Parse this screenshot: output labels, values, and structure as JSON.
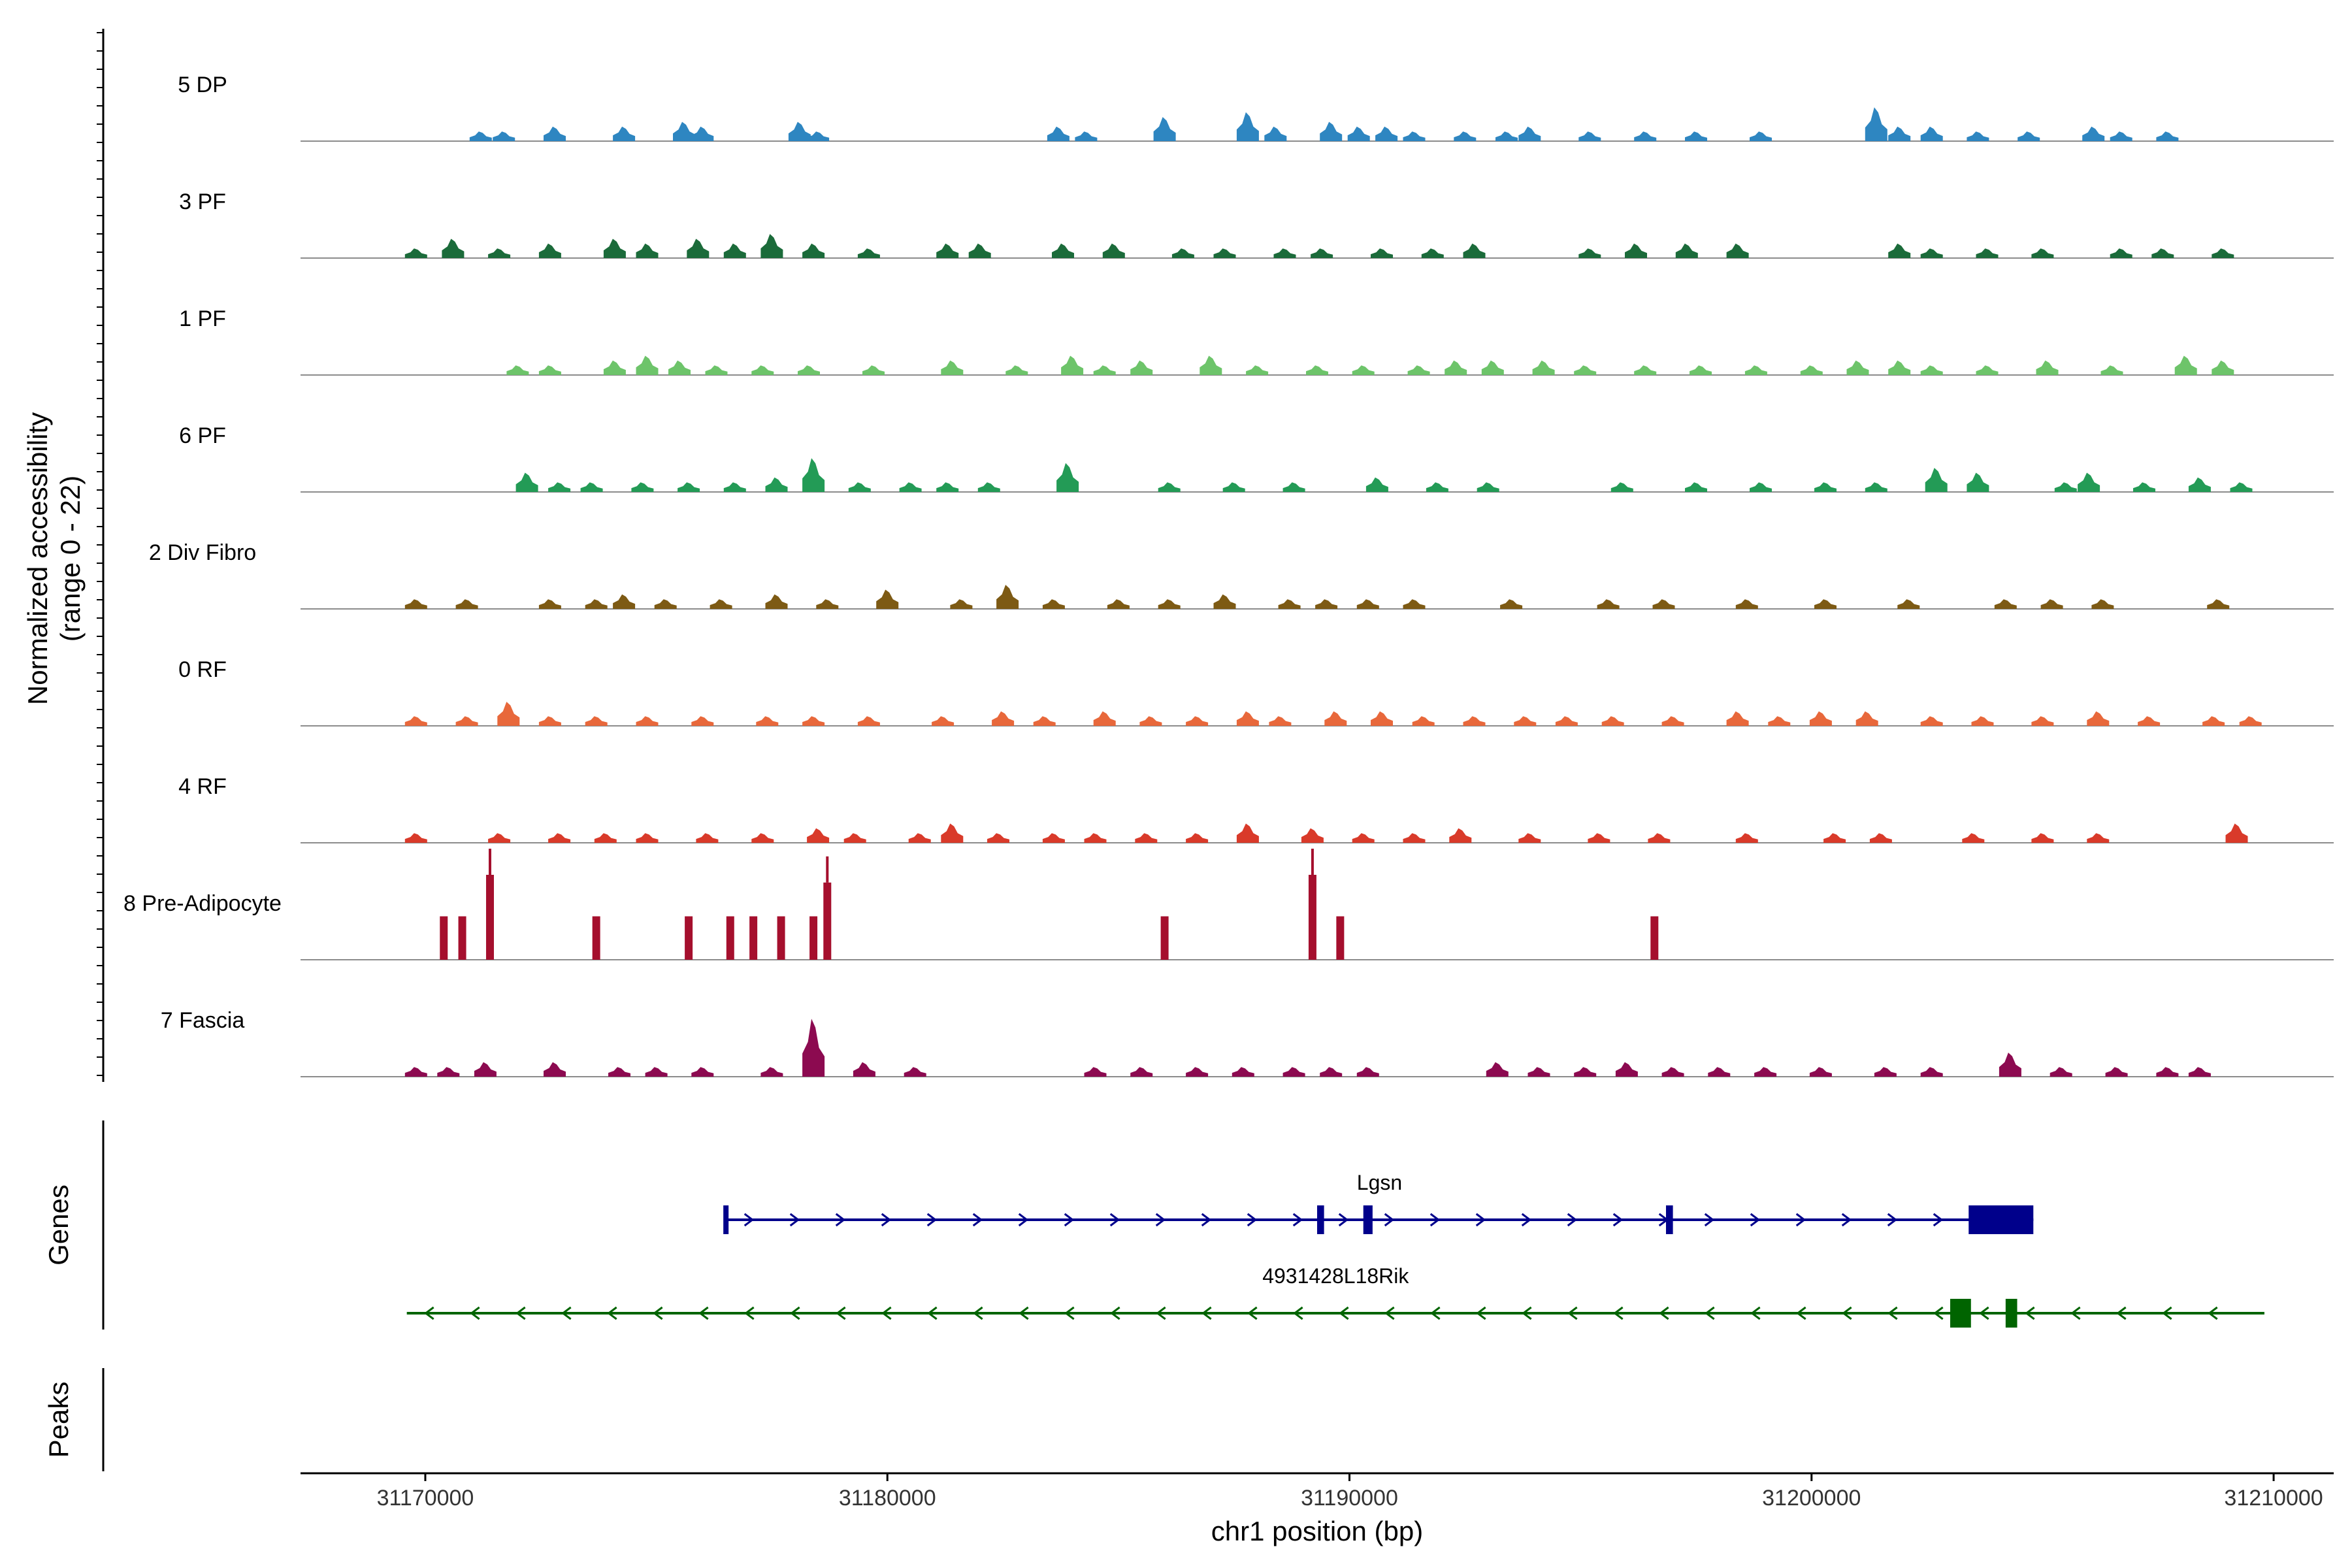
{
  "chart_data": {
    "type": "coverage-tracks",
    "ylabel_line1": "Normalized accessibility",
    "ylabel_line2": "(range 0 - 22)",
    "ylim": [
      0,
      22
    ],
    "xlabel": "chr1 position (bp)",
    "xlim": [
      31167300,
      31211300
    ],
    "x_ticks": [
      31170000,
      31180000,
      31190000,
      31200000,
      31210000
    ],
    "x_tick_labels": [
      "31170000",
      "31180000",
      "31190000",
      "31200000",
      "31210000"
    ],
    "tracks": [
      {
        "name": "5 DP",
        "color": "#2E86C1",
        "peaks": [
          [
            31171200,
            2
          ],
          [
            31171700,
            2
          ],
          [
            31172800,
            3
          ],
          [
            31174300,
            3
          ],
          [
            31175600,
            4
          ],
          [
            31176000,
            3
          ],
          [
            31178100,
            4
          ],
          [
            31178500,
            2
          ],
          [
            31183700,
            3
          ],
          [
            31184300,
            2
          ],
          [
            31186000,
            5
          ],
          [
            31187800,
            6
          ],
          [
            31188400,
            3
          ],
          [
            31189600,
            4
          ],
          [
            31190200,
            3
          ],
          [
            31190800,
            3
          ],
          [
            31191400,
            2
          ],
          [
            31192500,
            2
          ],
          [
            31193400,
            2
          ],
          [
            31193900,
            3
          ],
          [
            31195200,
            2
          ],
          [
            31196400,
            2
          ],
          [
            31197500,
            2
          ],
          [
            31198900,
            2
          ],
          [
            31201400,
            7
          ],
          [
            31201900,
            3
          ],
          [
            31202600,
            3
          ],
          [
            31203600,
            2
          ],
          [
            31204700,
            2
          ],
          [
            31206100,
            3
          ],
          [
            31206700,
            2
          ],
          [
            31207700,
            2
          ]
        ]
      },
      {
        "name": "3 PF",
        "color": "#1B6B3A",
        "peaks": [
          [
            31169800,
            2
          ],
          [
            31170600,
            4
          ],
          [
            31171600,
            2
          ],
          [
            31172700,
            3
          ],
          [
            31174100,
            4
          ],
          [
            31174800,
            3
          ],
          [
            31175900,
            4
          ],
          [
            31176700,
            3
          ],
          [
            31177500,
            5
          ],
          [
            31178400,
            3
          ],
          [
            31179600,
            2
          ],
          [
            31181300,
            3
          ],
          [
            31182000,
            3
          ],
          [
            31183800,
            3
          ],
          [
            31184900,
            3
          ],
          [
            31186400,
            2
          ],
          [
            31187300,
            2
          ],
          [
            31188600,
            2
          ],
          [
            31189400,
            2
          ],
          [
            31190700,
            2
          ],
          [
            31191800,
            2
          ],
          [
            31192700,
            3
          ],
          [
            31195200,
            2
          ],
          [
            31196200,
            3
          ],
          [
            31197300,
            3
          ],
          [
            31198400,
            3
          ],
          [
            31201900,
            3
          ],
          [
            31202600,
            2
          ],
          [
            31203800,
            2
          ],
          [
            31205000,
            2
          ],
          [
            31206700,
            2
          ],
          [
            31207600,
            2
          ],
          [
            31208900,
            2
          ]
        ]
      },
      {
        "name": "1 PF",
        "color": "#6DC46A",
        "peaks": [
          [
            31172000,
            2
          ],
          [
            31172700,
            2
          ],
          [
            31174100,
            3
          ],
          [
            31174800,
            4
          ],
          [
            31175500,
            3
          ],
          [
            31176300,
            2
          ],
          [
            31177300,
            2
          ],
          [
            31178300,
            2
          ],
          [
            31179700,
            2
          ],
          [
            31181400,
            3
          ],
          [
            31182800,
            2
          ],
          [
            31184000,
            4
          ],
          [
            31184700,
            2
          ],
          [
            31185500,
            3
          ],
          [
            31187000,
            4
          ],
          [
            31188000,
            2
          ],
          [
            31189300,
            2
          ],
          [
            31190300,
            2
          ],
          [
            31191500,
            2
          ],
          [
            31192300,
            3
          ],
          [
            31193100,
            3
          ],
          [
            31194200,
            3
          ],
          [
            31195100,
            2
          ],
          [
            31196400,
            2
          ],
          [
            31197600,
            2
          ],
          [
            31198800,
            2
          ],
          [
            31200000,
            2
          ],
          [
            31201000,
            3
          ],
          [
            31201900,
            3
          ],
          [
            31202600,
            2
          ],
          [
            31203800,
            2
          ],
          [
            31205100,
            3
          ],
          [
            31206500,
            2
          ],
          [
            31208100,
            4
          ],
          [
            31208900,
            3
          ]
        ]
      },
      {
        "name": "6 PF",
        "color": "#239B56",
        "peaks": [
          [
            31172200,
            4
          ],
          [
            31172900,
            2
          ],
          [
            31173600,
            2
          ],
          [
            31174700,
            2
          ],
          [
            31175700,
            2
          ],
          [
            31176700,
            2
          ],
          [
            31177600,
            3
          ],
          [
            31178400,
            7
          ],
          [
            31179400,
            2
          ],
          [
            31180500,
            2
          ],
          [
            31181300,
            2
          ],
          [
            31182200,
            2
          ],
          [
            31183900,
            6
          ],
          [
            31186100,
            2
          ],
          [
            31187500,
            2
          ],
          [
            31188800,
            2
          ],
          [
            31190600,
            3
          ],
          [
            31191900,
            2
          ],
          [
            31193000,
            2
          ],
          [
            31195900,
            2
          ],
          [
            31197500,
            2
          ],
          [
            31198900,
            2
          ],
          [
            31200300,
            2
          ],
          [
            31201400,
            2
          ],
          [
            31202700,
            5
          ],
          [
            31203600,
            4
          ],
          [
            31205500,
            2
          ],
          [
            31206000,
            4
          ],
          [
            31207200,
            2
          ],
          [
            31208400,
            3
          ],
          [
            31209300,
            2
          ]
        ]
      },
      {
        "name": "2 Div Fibro",
        "color": "#7D5A14",
        "peaks": [
          [
            31169800,
            2
          ],
          [
            31170900,
            2
          ],
          [
            31172700,
            2
          ],
          [
            31173700,
            2
          ],
          [
            31174300,
            3
          ],
          [
            31175200,
            2
          ],
          [
            31176400,
            2
          ],
          [
            31177600,
            3
          ],
          [
            31178700,
            2
          ],
          [
            31180000,
            4
          ],
          [
            31181600,
            2
          ],
          [
            31182600,
            5
          ],
          [
            31183600,
            2
          ],
          [
            31185000,
            2
          ],
          [
            31186100,
            2
          ],
          [
            31187300,
            3
          ],
          [
            31188700,
            2
          ],
          [
            31189500,
            2
          ],
          [
            31190400,
            2
          ],
          [
            31191400,
            2
          ],
          [
            31193500,
            2
          ],
          [
            31195600,
            2
          ],
          [
            31196800,
            2
          ],
          [
            31198600,
            2
          ],
          [
            31200300,
            2
          ],
          [
            31202100,
            2
          ],
          [
            31204200,
            2
          ],
          [
            31205200,
            2
          ],
          [
            31206300,
            2
          ],
          [
            31208800,
            2
          ]
        ]
      },
      {
        "name": "0 RF",
        "color": "#E8683B",
        "peaks": [
          [
            31169800,
            2
          ],
          [
            31170900,
            2
          ],
          [
            31171800,
            5
          ],
          [
            31172700,
            2
          ],
          [
            31173700,
            2
          ],
          [
            31174800,
            2
          ],
          [
            31176000,
            2
          ],
          [
            31177400,
            2
          ],
          [
            31178400,
            2
          ],
          [
            31179600,
            2
          ],
          [
            31181200,
            2
          ],
          [
            31182500,
            3
          ],
          [
            31183400,
            2
          ],
          [
            31184700,
            3
          ],
          [
            31185700,
            2
          ],
          [
            31186700,
            2
          ],
          [
            31187800,
            3
          ],
          [
            31188500,
            2
          ],
          [
            31189700,
            3
          ],
          [
            31190700,
            3
          ],
          [
            31191600,
            2
          ],
          [
            31192700,
            2
          ],
          [
            31193800,
            2
          ],
          [
            31194700,
            2
          ],
          [
            31195700,
            2
          ],
          [
            31197000,
            2
          ],
          [
            31198400,
            3
          ],
          [
            31199300,
            2
          ],
          [
            31200200,
            3
          ],
          [
            31201200,
            3
          ],
          [
            31202600,
            2
          ],
          [
            31203700,
            2
          ],
          [
            31205000,
            2
          ],
          [
            31206200,
            3
          ],
          [
            31207300,
            2
          ],
          [
            31208700,
            2
          ],
          [
            31209500,
            2
          ]
        ]
      },
      {
        "name": "4 RF",
        "color": "#D93A2A",
        "peaks": [
          [
            31169800,
            2
          ],
          [
            31171600,
            2
          ],
          [
            31172900,
            2
          ],
          [
            31173900,
            2
          ],
          [
            31174800,
            2
          ],
          [
            31176100,
            2
          ],
          [
            31177300,
            2
          ],
          [
            31178500,
            3
          ],
          [
            31179300,
            2
          ],
          [
            31180700,
            2
          ],
          [
            31181400,
            4
          ],
          [
            31182400,
            2
          ],
          [
            31183600,
            2
          ],
          [
            31184500,
            2
          ],
          [
            31185600,
            2
          ],
          [
            31186700,
            2
          ],
          [
            31187800,
            4
          ],
          [
            31189200,
            3
          ],
          [
            31190300,
            2
          ],
          [
            31191400,
            2
          ],
          [
            31192400,
            3
          ],
          [
            31193900,
            2
          ],
          [
            31195400,
            2
          ],
          [
            31196700,
            2
          ],
          [
            31198600,
            2
          ],
          [
            31200500,
            2
          ],
          [
            31201500,
            2
          ],
          [
            31203500,
            2
          ],
          [
            31205000,
            2
          ],
          [
            31206200,
            2
          ],
          [
            31209200,
            4
          ]
        ]
      },
      {
        "name": "8 Pre-Adipocyte",
        "color": "#A50F2D",
        "peaks": [
          [
            31170400,
            9
          ],
          [
            31170800,
            9
          ],
          [
            31171400,
            18
          ],
          [
            31173700,
            9
          ],
          [
            31175700,
            9
          ],
          [
            31176600,
            9
          ],
          [
            31177100,
            9
          ],
          [
            31177700,
            9
          ],
          [
            31178400,
            9
          ],
          [
            31178700,
            16
          ],
          [
            31186000,
            9
          ],
          [
            31189200,
            18
          ],
          [
            31189800,
            9
          ],
          [
            31196600,
            9
          ]
        ]
      },
      {
        "name": "7 Fascia",
        "color": "#8C0A50",
        "peaks": [
          [
            31169800,
            2
          ],
          [
            31170500,
            2
          ],
          [
            31171300,
            3
          ],
          [
            31172800,
            3
          ],
          [
            31174200,
            2
          ],
          [
            31175000,
            2
          ],
          [
            31176000,
            2
          ],
          [
            31177500,
            2
          ],
          [
            31178400,
            12
          ],
          [
            31179500,
            3
          ],
          [
            31180600,
            2
          ],
          [
            31184500,
            2
          ],
          [
            31185500,
            2
          ],
          [
            31186700,
            2
          ],
          [
            31187700,
            2
          ],
          [
            31188800,
            2
          ],
          [
            31189600,
            2
          ],
          [
            31190400,
            2
          ],
          [
            31193200,
            3
          ],
          [
            31194100,
            2
          ],
          [
            31195100,
            2
          ],
          [
            31196000,
            3
          ],
          [
            31197000,
            2
          ],
          [
            31198000,
            2
          ],
          [
            31199000,
            2
          ],
          [
            31200200,
            2
          ],
          [
            31201600,
            2
          ],
          [
            31202600,
            2
          ],
          [
            31204300,
            5
          ],
          [
            31205400,
            2
          ],
          [
            31206600,
            2
          ],
          [
            31207700,
            2
          ],
          [
            31208400,
            2
          ]
        ]
      }
    ],
    "genes_label": "Genes",
    "peaks_label": "Peaks",
    "genes": [
      {
        "name": "Lgsn",
        "strand": "+",
        "color": "#00008B",
        "start": 31176500,
        "end": 31204800,
        "exons": [
          [
            31176450,
            31176550
          ],
          [
            31189300,
            31189450
          ],
          [
            31190300,
            31190500
          ],
          [
            31196850,
            31197000
          ],
          [
            31203400,
            31204800
          ]
        ]
      },
      {
        "name": "4931428L18Rik",
        "strand": "-",
        "color": "#006400",
        "start": 31169600,
        "end": 31209800,
        "exons": [
          [
            31203000,
            31203450
          ],
          [
            31204200,
            31204450
          ]
        ]
      }
    ]
  }
}
